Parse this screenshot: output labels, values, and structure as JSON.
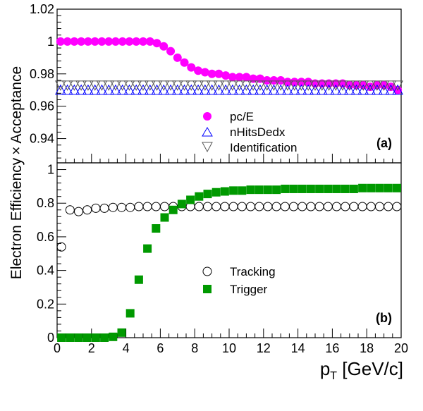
{
  "figure": {
    "ylabel_left": "Electron Efficiency",
    "ylabel_times": "×",
    "ylabel_right": "Acceptance",
    "xlabel_main": "p",
    "xlabel_sub": "T",
    "xlabel_unit": " [GeV/c]",
    "colors": {
      "pc_e": "#ff00ff",
      "nhits": "#0000ff",
      "ident": "#555555",
      "tracking": "#000000",
      "trigger": "#009900",
      "axis": "#000000"
    }
  },
  "chart_data": [
    {
      "type": "scatter",
      "panel_label": "(a)",
      "xlim": [
        0,
        20
      ],
      "ylim": [
        0.925,
        1.02
      ],
      "x_ticks": [
        0,
        2,
        4,
        6,
        8,
        10,
        12,
        14,
        16,
        18,
        20
      ],
      "y_ticks": [
        0.94,
        0.96,
        0.98,
        1,
        1.02
      ],
      "y_tick_labels": [
        "0.94",
        "0.96",
        "0.98",
        "1",
        "1.02"
      ],
      "x": [
        0.2,
        0.6,
        1.0,
        1.4,
        1.8,
        2.2,
        2.6,
        3.0,
        3.4,
        3.8,
        4.2,
        4.6,
        5.0,
        5.4,
        5.8,
        6.2,
        6.6,
        7.0,
        7.4,
        7.8,
        8.2,
        8.6,
        9.0,
        9.4,
        9.8,
        10.2,
        10.6,
        11.0,
        11.4,
        11.8,
        12.2,
        12.6,
        13.0,
        13.4,
        13.8,
        14.2,
        14.6,
        15.0,
        15.4,
        15.8,
        16.2,
        16.6,
        17.0,
        17.4,
        17.8,
        18.2,
        18.6,
        19.0,
        19.4,
        19.8
      ],
      "series": [
        {
          "name": "pc/E",
          "marker": "filled-circle",
          "values": [
            1.0,
            1.0,
            1.0,
            1.0,
            1.0,
            1.0,
            1.0,
            1.0,
            1.0,
            1.0,
            1.0,
            1.0,
            1.0,
            1.0,
            0.999,
            0.997,
            0.994,
            0.99,
            0.987,
            0.984,
            0.982,
            0.981,
            0.98,
            0.98,
            0.979,
            0.978,
            0.978,
            0.978,
            0.977,
            0.977,
            0.976,
            0.976,
            0.976,
            0.975,
            0.975,
            0.975,
            0.975,
            0.974,
            0.974,
            0.974,
            0.974,
            0.974,
            0.973,
            0.973,
            0.973,
            0.972,
            0.973,
            0.973,
            0.972,
            0.97
          ]
        },
        {
          "name": "nHitsDedx",
          "marker": "open-triangle-up",
          "values": [
            0.97,
            0.97,
            0.97,
            0.97,
            0.97,
            0.97,
            0.97,
            0.97,
            0.97,
            0.97,
            0.97,
            0.97,
            0.97,
            0.97,
            0.97,
            0.97,
            0.97,
            0.97,
            0.97,
            0.97,
            0.97,
            0.97,
            0.97,
            0.97,
            0.97,
            0.97,
            0.97,
            0.97,
            0.97,
            0.97,
            0.97,
            0.97,
            0.97,
            0.97,
            0.97,
            0.97,
            0.97,
            0.97,
            0.97,
            0.97,
            0.97,
            0.97,
            0.97,
            0.97,
            0.97,
            0.97,
            0.97,
            0.97,
            0.97,
            0.97
          ]
        },
        {
          "name": "Identification",
          "marker": "open-triangle-down",
          "values": [
            0.973,
            0.973,
            0.973,
            0.973,
            0.973,
            0.973,
            0.973,
            0.973,
            0.973,
            0.973,
            0.973,
            0.973,
            0.973,
            0.973,
            0.973,
            0.973,
            0.973,
            0.973,
            0.973,
            0.973,
            0.973,
            0.973,
            0.973,
            0.973,
            0.973,
            0.973,
            0.973,
            0.973,
            0.973,
            0.973,
            0.973,
            0.973,
            0.973,
            0.973,
            0.973,
            0.973,
            0.973,
            0.973,
            0.973,
            0.973,
            0.973,
            0.973,
            0.973,
            0.973,
            0.973,
            0.973,
            0.973,
            0.973,
            0.973,
            0.973
          ]
        }
      ],
      "legend_placement": "center-bottom",
      "grid": false
    },
    {
      "type": "scatter",
      "panel_label": "(b)",
      "xlim": [
        0,
        20
      ],
      "ylim": [
        0,
        1.04
      ],
      "x_ticks": [
        0,
        2,
        4,
        6,
        8,
        10,
        12,
        14,
        16,
        18,
        20
      ],
      "x_tick_labels": [
        "0",
        "2",
        "4",
        "6",
        "8",
        "10",
        "12",
        "14",
        "16",
        "18",
        "20"
      ],
      "y_ticks": [
        0,
        0.2,
        0.4,
        0.6,
        0.8,
        1
      ],
      "y_tick_labels": [
        "0",
        "0.2",
        "0.4",
        "0.6",
        "0.8",
        "1"
      ],
      "series": [
        {
          "name": "Tracking",
          "marker": "open-circle",
          "x": [
            0.25,
            0.75,
            1.25,
            1.75,
            2.25,
            2.75,
            3.25,
            3.75,
            4.25,
            4.75,
            5.25,
            5.75,
            6.25,
            6.75,
            7.25,
            7.75,
            8.25,
            8.75,
            9.25,
            9.75,
            10.25,
            10.75,
            11.25,
            11.75,
            12.25,
            12.75,
            13.25,
            13.75,
            14.25,
            14.75,
            15.25,
            15.75,
            16.25,
            16.75,
            17.25,
            17.75,
            18.25,
            18.75,
            19.25,
            19.75
          ],
          "values": [
            0.54,
            0.76,
            0.75,
            0.76,
            0.77,
            0.77,
            0.775,
            0.775,
            0.775,
            0.78,
            0.78,
            0.78,
            0.78,
            0.78,
            0.78,
            0.78,
            0.78,
            0.78,
            0.78,
            0.78,
            0.78,
            0.78,
            0.78,
            0.78,
            0.78,
            0.78,
            0.78,
            0.78,
            0.78,
            0.78,
            0.78,
            0.78,
            0.78,
            0.78,
            0.78,
            0.78,
            0.78,
            0.78,
            0.78,
            0.78
          ]
        },
        {
          "name": "Trigger",
          "marker": "filled-square",
          "x": [
            0.25,
            0.75,
            1.25,
            1.75,
            2.25,
            2.75,
            3.25,
            3.75,
            4.25,
            4.75,
            5.25,
            5.75,
            6.25,
            6.75,
            7.25,
            7.75,
            8.25,
            8.75,
            9.25,
            9.75,
            10.25,
            10.75,
            11.25,
            11.75,
            12.25,
            12.75,
            13.25,
            13.75,
            14.25,
            14.75,
            15.25,
            15.75,
            16.25,
            16.75,
            17.25,
            17.75,
            18.25,
            18.75,
            19.25,
            19.75
          ],
          "values": [
            0.0,
            0.0,
            0.0,
            0.0,
            0.0,
            0.0,
            0.005,
            0.03,
            0.145,
            0.345,
            0.53,
            0.65,
            0.715,
            0.76,
            0.795,
            0.82,
            0.84,
            0.855,
            0.865,
            0.87,
            0.875,
            0.875,
            0.88,
            0.88,
            0.88,
            0.88,
            0.885,
            0.885,
            0.885,
            0.885,
            0.885,
            0.885,
            0.885,
            0.885,
            0.885,
            0.89,
            0.89,
            0.89,
            0.89,
            0.89
          ]
        }
      ],
      "legend_placement": "center",
      "grid": false
    }
  ]
}
